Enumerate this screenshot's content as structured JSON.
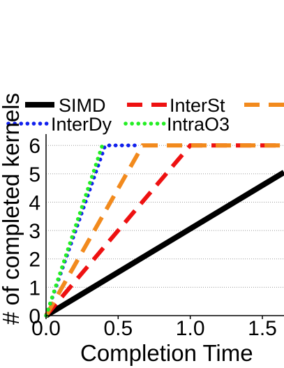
{
  "chart_data": {
    "type": "line",
    "xlabel": "Completion Time",
    "ylabel": "# of completed kernels",
    "xlim": [
      0,
      1.65
    ],
    "ylim": [
      0,
      6.3
    ],
    "x_ticks": [
      "0.0",
      "0.5",
      "1.0",
      "1.5"
    ],
    "y_ticks": [
      "0",
      "1",
      "2",
      "3",
      "4",
      "5",
      "6"
    ],
    "grid": "horizontal dotted",
    "legend_position": "top",
    "series": [
      {
        "name": "SIMD",
        "color": "#000000",
        "style": "solid",
        "x": [
          0,
          1.65
        ],
        "y": [
          0,
          5.05
        ]
      },
      {
        "name": "InterSt",
        "color": "#ee1111",
        "style": "dashed",
        "x": [
          0,
          1.0,
          1.65
        ],
        "y": [
          0,
          6,
          6
        ]
      },
      {
        "name": "",
        "color": "#f28a1d",
        "style": "dashed",
        "x": [
          0,
          0.67,
          1.65
        ],
        "y": [
          0,
          6,
          6
        ]
      },
      {
        "name": "InterDy",
        "color": "#1020ee",
        "style": "dotted",
        "x": [
          0,
          0.41,
          0.65
        ],
        "y": [
          0,
          6,
          6
        ]
      },
      {
        "name": "IntraO3",
        "color": "#22ee22",
        "style": "dotted",
        "x": [
          0,
          0.39
        ],
        "y": [
          0,
          6
        ]
      }
    ]
  }
}
